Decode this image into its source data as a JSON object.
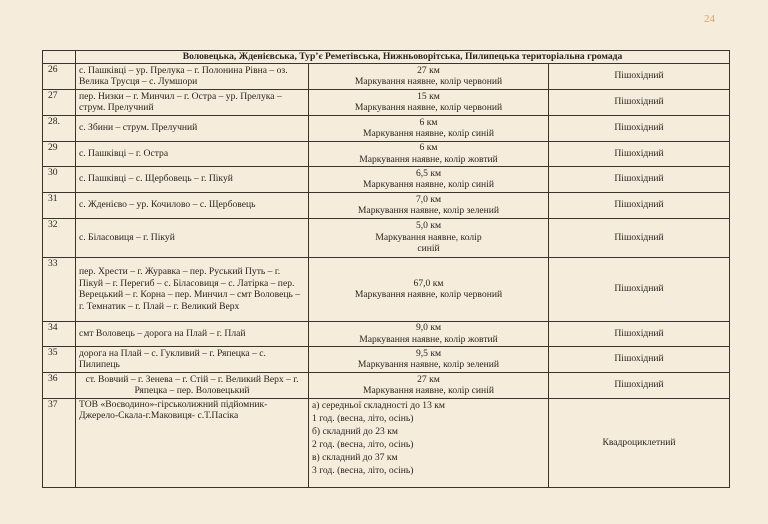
{
  "page_number": "24",
  "table": {
    "section_header": "Воловецька, Жденієвська, Тур’є Реметівська, Нижньоворітська, Пилипецька територіальна громада",
    "rows": [
      {
        "num": "26",
        "route": "с. Пашківці – ур. Прелука – г. Полонина Рівна – оз. Велика Трусця – с. Лумшори",
        "distance": [
          "27 км",
          "Маркування наявне, колір червоний"
        ],
        "type": "Пішохідний"
      },
      {
        "num": "27",
        "route": "пер. Низки – г. Минчил – г. Остра – ур. Прелука – струм. Прелучний",
        "distance": [
          "15 км",
          "Маркування наявне, колір червоний"
        ],
        "type": "Пішохідний"
      },
      {
        "num": "28.",
        "route": "с. Збини – струм. Прелучний",
        "distance": [
          "6 км",
          "Маркування наявне, колір синій"
        ],
        "type": "Пішохідний"
      },
      {
        "num": "29",
        "route": "с. Пашківці – г. Остра",
        "distance": [
          "6 км",
          "Маркування наявне, колір жовтий"
        ],
        "type": "Пішохідний"
      },
      {
        "num": "30",
        "route": "с. Пашківці – с. Щербовець – г. Пікуй",
        "distance": [
          "6,5 км",
          "Маркування наявне, колір синій"
        ],
        "type": "Пішохідний"
      },
      {
        "num": "31",
        "route": "с. Жденієво – ур. Кочилово – с. Щербовець",
        "distance": [
          "7,0 км",
          "Маркування наявне, колір зелений"
        ],
        "type": "Пішохідний"
      },
      {
        "num": "32",
        "route": "с. Біласовиця – г. Пікуй",
        "distance": [
          "5,0 км",
          "Маркування наявне, колір",
          "синій"
        ],
        "type": "Пішохідний"
      },
      {
        "num": "33",
        "route": "пер. Хрести – г. Журавка – пер. Руський Путь – г. Пікуй – г. Перегиб – с. Біласовиця – с. Латірка – пер. Верецький – г. Корна – пер. Минчил – смт Воловець – г. Темнатик – г. Плай – г. Великий Верх",
        "distance": [
          "67,0 км",
          "Маркування наявне, колір червоний"
        ],
        "type": "Пішохідний"
      },
      {
        "num": "34",
        "route": "смт Воловець – дорога на Плай – г. Плай",
        "distance": [
          "9,0 км",
          "Маркування наявне, колір жовтий"
        ],
        "type": "Пішохідний"
      },
      {
        "num": "35",
        "route": "дорога на Плай – с. Гукливий – г. Ряпецка – с. Пилипець",
        "distance": [
          "9,5 км",
          "Маркування наявне, колір зелений"
        ],
        "type": "Пішохідний"
      },
      {
        "num": "36",
        "route": "ст. Вовчий – г. Зенева – г. Стій – г. Великий Верх – г. Ряпецка – пер. Воловецький",
        "distance": [
          "27 км",
          "Маркування наявне, колір синій"
        ],
        "type": "Пішохідний"
      },
      {
        "num": "37",
        "route": "ТОВ «Воєводино»-гірськолижний підйомник-Джерело-Скала-г.Маковиця- с.Т.Пасіка",
        "distance": [
          "а) середньої складності до 13 км",
          "1 год. (весна, літо, осінь)",
          "б) складний до 23 км",
          "2 год. (весна, літо, осінь)",
          "в) складний до 37 км",
          "3 год. (весна, літо, осінь)"
        ],
        "type": "Квадроциклетний"
      }
    ]
  }
}
